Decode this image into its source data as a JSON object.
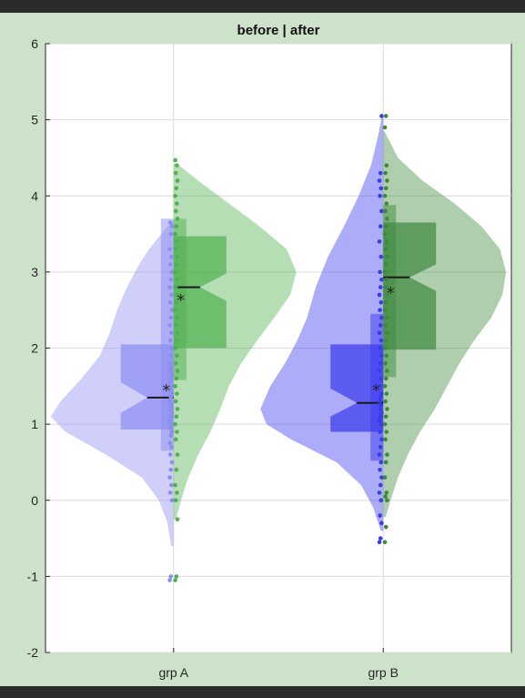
{
  "window": {
    "background": "#2b2b2b",
    "figure_background": "#cde3c9"
  },
  "chart_data": {
    "type": "violin",
    "title": "before | after",
    "xlabel": "",
    "ylabel": "",
    "categories": [
      "grp A",
      "grp B"
    ],
    "ylim": [
      -2,
      6
    ],
    "yticks": [
      -2,
      -1,
      0,
      1,
      2,
      3,
      4,
      5,
      6
    ],
    "grid": true,
    "legend": "none",
    "groups": [
      {
        "category": "grp A",
        "series": [
          {
            "name": "before",
            "side": "left",
            "color": "#8c8cf2",
            "density": {
              "y": [
                -0.6,
                -0.3,
                0,
                0.3,
                0.6,
                0.9,
                1.1,
                1.3,
                1.6,
                1.9,
                2.2,
                2.5,
                2.8,
                3.1,
                3.3,
                3.5,
                3.65
              ],
              "w": [
                0.02,
                0.05,
                0.12,
                0.26,
                0.55,
                0.88,
                1.0,
                0.92,
                0.75,
                0.6,
                0.52,
                0.46,
                0.38,
                0.28,
                0.2,
                0.1,
                0.02
              ]
            },
            "box": {
              "q1": 0.93,
              "median": 1.35,
              "q3": 2.05,
              "notch_lo": 1.15,
              "notch_hi": 1.55,
              "whisker_lo": 0.65,
              "whisker_hi": 3.7
            },
            "mean": 1.47,
            "points": [
              -1.05,
              -1.0,
              0.0,
              0.1,
              0.2,
              0.3,
              0.4,
              0.5,
              0.6,
              0.7,
              0.75,
              0.85,
              0.9,
              0.95,
              1.0,
              1.05,
              1.1,
              1.15,
              1.2,
              1.25,
              1.3,
              1.35,
              1.4,
              1.45,
              1.5,
              1.55,
              1.6,
              1.65,
              1.7,
              1.75,
              1.8,
              1.9,
              2.0,
              2.1,
              2.2,
              2.3,
              2.4,
              2.5,
              2.6,
              2.7,
              2.8,
              2.9,
              3.0,
              3.1,
              3.2,
              3.3,
              3.5,
              3.6,
              3.65
            ]
          },
          {
            "name": "after",
            "side": "right",
            "color": "#4fb04f",
            "density": {
              "y": [
                -0.25,
                0,
                0.3,
                0.6,
                0.9,
                1.2,
                1.5,
                1.8,
                2.1,
                2.4,
                2.7,
                3.0,
                3.3,
                3.6,
                3.9,
                4.2,
                4.42
              ],
              "w": [
                0.02,
                0.06,
                0.12,
                0.2,
                0.3,
                0.38,
                0.45,
                0.55,
                0.68,
                0.82,
                0.95,
                1.0,
                0.92,
                0.7,
                0.45,
                0.2,
                0.03
              ]
            },
            "box": {
              "q1": 2.0,
              "median": 2.8,
              "q3": 3.47,
              "notch_lo": 2.62,
              "notch_hi": 2.98,
              "whisker_lo": 1.58,
              "whisker_hi": 3.7
            },
            "mean": 2.65,
            "points": [
              -1.05,
              -1.0,
              -0.25,
              0.0,
              0.1,
              0.2,
              0.4,
              0.6,
              0.8,
              0.9,
              1.0,
              1.1,
              1.2,
              1.3,
              1.4,
              1.5,
              1.6,
              1.7,
              1.8,
              1.9,
              2.0,
              2.1,
              2.2,
              2.3,
              2.4,
              2.5,
              2.6,
              2.7,
              2.8,
              2.9,
              3.0,
              3.1,
              3.2,
              3.3,
              3.4,
              3.5,
              3.6,
              3.7,
              3.8,
              3.9,
              4.0,
              4.1,
              4.2,
              4.3,
              4.4,
              4.47
            ]
          }
        ]
      },
      {
        "category": "grp B",
        "series": [
          {
            "name": "before",
            "side": "left",
            "color": "#3a3aee",
            "density": {
              "y": [
                -0.4,
                -0.1,
                0.2,
                0.5,
                0.8,
                1.0,
                1.2,
                1.5,
                1.8,
                2.1,
                2.4,
                2.8,
                3.2,
                3.6,
                4.0,
                4.4,
                4.8,
                5.05
              ],
              "w": [
                0.02,
                0.08,
                0.18,
                0.38,
                0.75,
                0.95,
                1.0,
                0.92,
                0.8,
                0.7,
                0.62,
                0.55,
                0.45,
                0.32,
                0.2,
                0.1,
                0.04,
                0.01
              ]
            },
            "box": {
              "q1": 0.9,
              "median": 1.28,
              "q3": 2.05,
              "notch_lo": 1.1,
              "notch_hi": 1.47,
              "whisker_lo": 0.52,
              "whisker_hi": 2.45
            },
            "mean": 1.47,
            "points": [
              -0.55,
              -0.5,
              -0.3,
              -0.2,
              0.0,
              0.1,
              0.2,
              0.3,
              0.4,
              0.5,
              0.6,
              0.7,
              0.8,
              0.9,
              1.0,
              1.05,
              1.1,
              1.15,
              1.2,
              1.25,
              1.3,
              1.35,
              1.4,
              1.5,
              1.6,
              1.7,
              1.8,
              1.9,
              2.0,
              2.1,
              2.2,
              2.3,
              2.4,
              2.5,
              2.6,
              2.7,
              2.8,
              2.9,
              3.0,
              3.2,
              3.4,
              3.6,
              3.8,
              4.0,
              4.1,
              4.2,
              4.3,
              5.05
            ]
          },
          {
            "name": "after",
            "side": "right",
            "color": "#3d8a3d",
            "density": {
              "y": [
                -0.22,
                0,
                0.3,
                0.6,
                0.9,
                1.2,
                1.5,
                1.8,
                2.1,
                2.4,
                2.7,
                3.0,
                3.3,
                3.6,
                3.9,
                4.2,
                4.5,
                4.85
              ],
              "w": [
                0.02,
                0.06,
                0.12,
                0.2,
                0.3,
                0.42,
                0.52,
                0.62,
                0.74,
                0.88,
                0.97,
                1.0,
                0.95,
                0.8,
                0.58,
                0.32,
                0.12,
                0.01
              ]
            },
            "box": {
              "q1": 1.98,
              "median": 2.93,
              "q3": 3.65,
              "notch_lo": 2.75,
              "notch_hi": 3.1,
              "whisker_lo": 1.62,
              "whisker_hi": 3.88
            },
            "mean": 2.75,
            "points": [
              -0.55,
              -0.35,
              0.0,
              0.05,
              0.1,
              0.3,
              0.5,
              0.6,
              0.8,
              0.9,
              1.0,
              1.1,
              1.2,
              1.3,
              1.4,
              1.5,
              1.6,
              1.7,
              1.8,
              1.9,
              2.0,
              2.1,
              2.2,
              2.3,
              2.4,
              2.5,
              2.6,
              2.7,
              2.8,
              2.9,
              3.0,
              3.1,
              3.2,
              3.3,
              3.4,
              3.5,
              3.6,
              3.7,
              3.8,
              3.9,
              4.0,
              4.1,
              4.2,
              4.3,
              4.4,
              4.9,
              5.05
            ]
          }
        ]
      }
    ]
  }
}
